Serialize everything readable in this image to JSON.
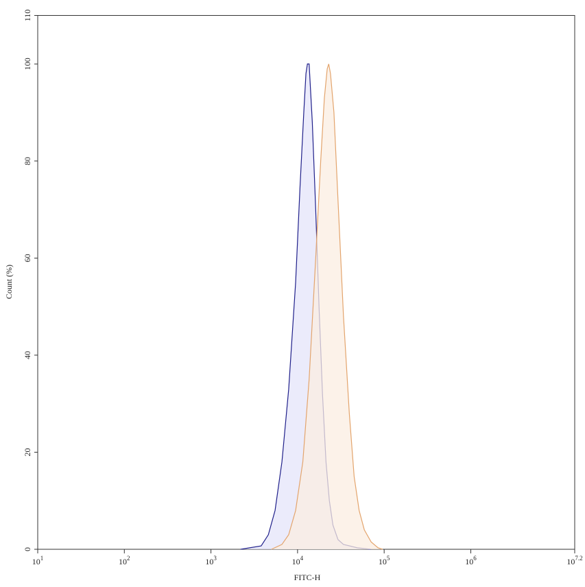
{
  "chart_data": {
    "type": "histogram-overlay",
    "xlabel": "FITC-H",
    "ylabel": "Count (%)",
    "xscale": "log",
    "xlim": [
      10,
      15848931.92
    ],
    "xticks": [
      {
        "value": 10,
        "label": "10^1"
      },
      {
        "value": 100,
        "label": "10^2"
      },
      {
        "value": 1000,
        "label": "10^3"
      },
      {
        "value": 10000,
        "label": "10^4"
      },
      {
        "value": 100000,
        "label": "10^5"
      },
      {
        "value": 1000000,
        "label": "10^6"
      },
      {
        "value": 15848931.92,
        "label": "10^7.2"
      }
    ],
    "ylim": [
      0,
      110
    ],
    "yticks": [
      0,
      20,
      40,
      60,
      80,
      100,
      110
    ],
    "series": [
      {
        "color": "#1f1f8a",
        "fill": "#e4e4fa",
        "x": [
          2200,
          3800,
          4600,
          5500,
          6600,
          7900,
          9500,
          10700,
          11800,
          12500,
          13000,
          13600,
          14800,
          16200,
          17700,
          19400,
          21300,
          23300,
          25600,
          29300,
          33900,
          49000,
          70000
        ],
        "values": [
          0,
          0.7,
          3,
          8,
          18,
          33,
          55,
          75,
          90,
          98,
          100,
          100,
          88,
          70,
          50,
          32,
          18,
          10,
          5,
          2,
          1,
          0.3,
          0
        ]
      },
      {
        "color": "#e3a46c",
        "fill": "#fbeee2",
        "x": [
          5000,
          6600,
          7900,
          9500,
          11500,
          13600,
          16200,
          18500,
          20400,
          22000,
          22900,
          24000,
          26300,
          29300,
          33900,
          39600,
          45000,
          51400,
          59000,
          70800,
          85000,
          96000
        ],
        "values": [
          0,
          1,
          3,
          8,
          18,
          35,
          60,
          80,
          93,
          99,
          100,
          98,
          90,
          72,
          48,
          28,
          15,
          8,
          4,
          1.5,
          0.3,
          0
        ]
      }
    ]
  }
}
